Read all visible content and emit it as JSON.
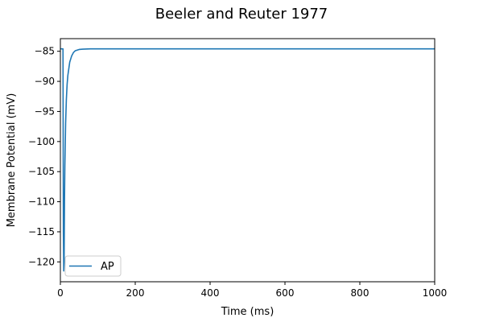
{
  "chart_data": {
    "type": "line",
    "title": "Beeler and Reuter 1977",
    "xlabel": "Time (ms)",
    "ylabel": "Membrane Potential (mV)",
    "xlim": [
      0,
      1000
    ],
    "ylim": [
      -123.3,
      -82.9
    ],
    "xticks": [
      0,
      200,
      400,
      600,
      800,
      1000
    ],
    "yticks": [
      -85,
      -90,
      -95,
      -100,
      -105,
      -110,
      -115,
      -120
    ],
    "xtick_labels": [
      "0",
      "200",
      "400",
      "600",
      "800",
      "1000"
    ],
    "ytick_labels": [
      "−85",
      "−90",
      "−95",
      "−100",
      "−105",
      "−110",
      "−115",
      "−120"
    ],
    "grid": false,
    "legend": {
      "position": "lower-left",
      "entries": [
        "AP"
      ]
    },
    "series": [
      {
        "name": "AP",
        "color": "#1f77b4",
        "x": [
          0,
          1,
          1.2,
          7,
          7.5,
          8,
          9,
          10,
          11,
          12,
          14,
          16,
          18,
          20,
          25,
          30,
          35,
          40,
          50,
          60,
          80,
          100,
          200,
          400,
          600,
          800,
          1000
        ],
        "y": [
          -84.6,
          -84.6,
          -84.6,
          -84.6,
          -100,
          -115,
          -121.5,
          -120,
          -110,
          -104,
          -97,
          -93,
          -90.5,
          -89,
          -86.8,
          -85.8,
          -85.2,
          -84.9,
          -84.7,
          -84.65,
          -84.6,
          -84.6,
          -84.6,
          -84.6,
          -84.6,
          -84.6,
          -84.6
        ]
      }
    ]
  }
}
